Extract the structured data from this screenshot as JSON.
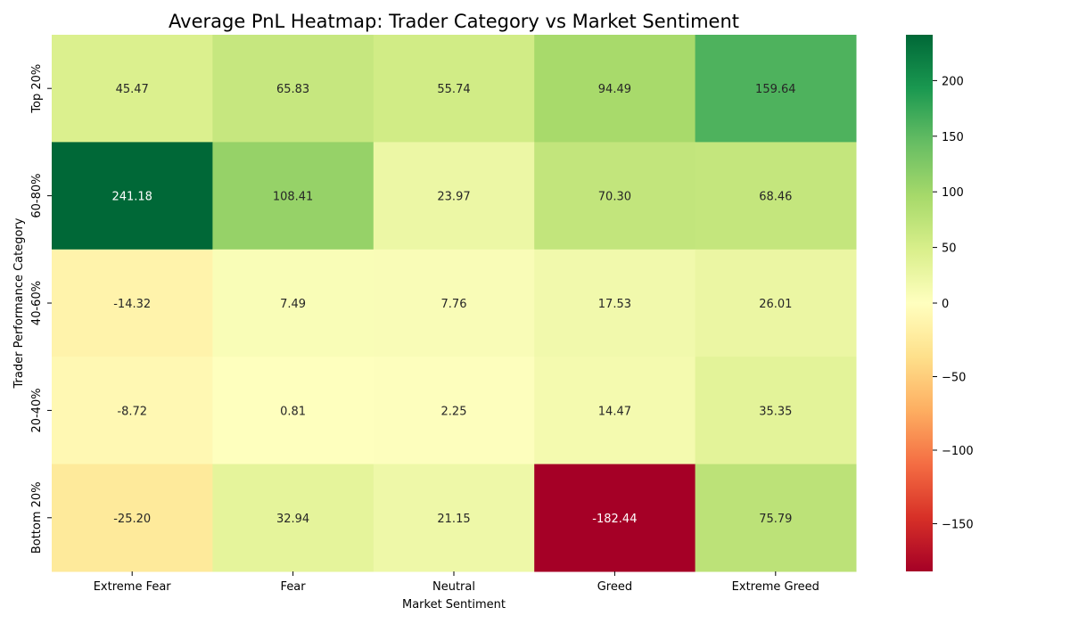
{
  "chart_data": {
    "type": "heatmap",
    "title": "Average PnL Heatmap: Trader Category vs Market Sentiment",
    "xlabel": "Market Sentiment",
    "ylabel": "Trader Performance Category",
    "x_categories": [
      "Extreme Fear",
      "Fear",
      "Neutral",
      "Greed",
      "Extreme Greed"
    ],
    "y_categories": [
      "Top 20%",
      "60-80%",
      "40-60%",
      "20-40%",
      "Bottom 20%"
    ],
    "values": [
      [
        45.47,
        65.83,
        55.74,
        94.49,
        159.64
      ],
      [
        241.18,
        108.41,
        23.97,
        70.3,
        68.46
      ],
      [
        -14.32,
        7.49,
        7.76,
        17.53,
        26.01
      ],
      [
        -8.72,
        0.81,
        2.25,
        14.47,
        35.35
      ],
      [
        -25.2,
        32.94,
        21.15,
        -182.44,
        75.79
      ]
    ],
    "value_labels": [
      [
        "45.47",
        "65.83",
        "55.74",
        "94.49",
        "159.64"
      ],
      [
        "241.18",
        "108.41",
        "23.97",
        "70.30",
        "68.46"
      ],
      [
        "-14.32",
        "7.49",
        "7.76",
        "17.53",
        "26.01"
      ],
      [
        "-8.72",
        "0.81",
        "2.25",
        "14.47",
        "35.35"
      ],
      [
        "-25.20",
        "32.94",
        "21.15",
        "-182.44",
        "75.79"
      ]
    ],
    "colormap": "RdYlGn",
    "color_range": [
      -182.44,
      241.18
    ],
    "colorbar_ticks": [
      200,
      150,
      100,
      50,
      0,
      -50,
      -100,
      -150
    ],
    "colorbar_tick_labels": [
      "200",
      "150",
      "100",
      "50",
      "0",
      "−50",
      "−100",
      "−150"
    ]
  }
}
